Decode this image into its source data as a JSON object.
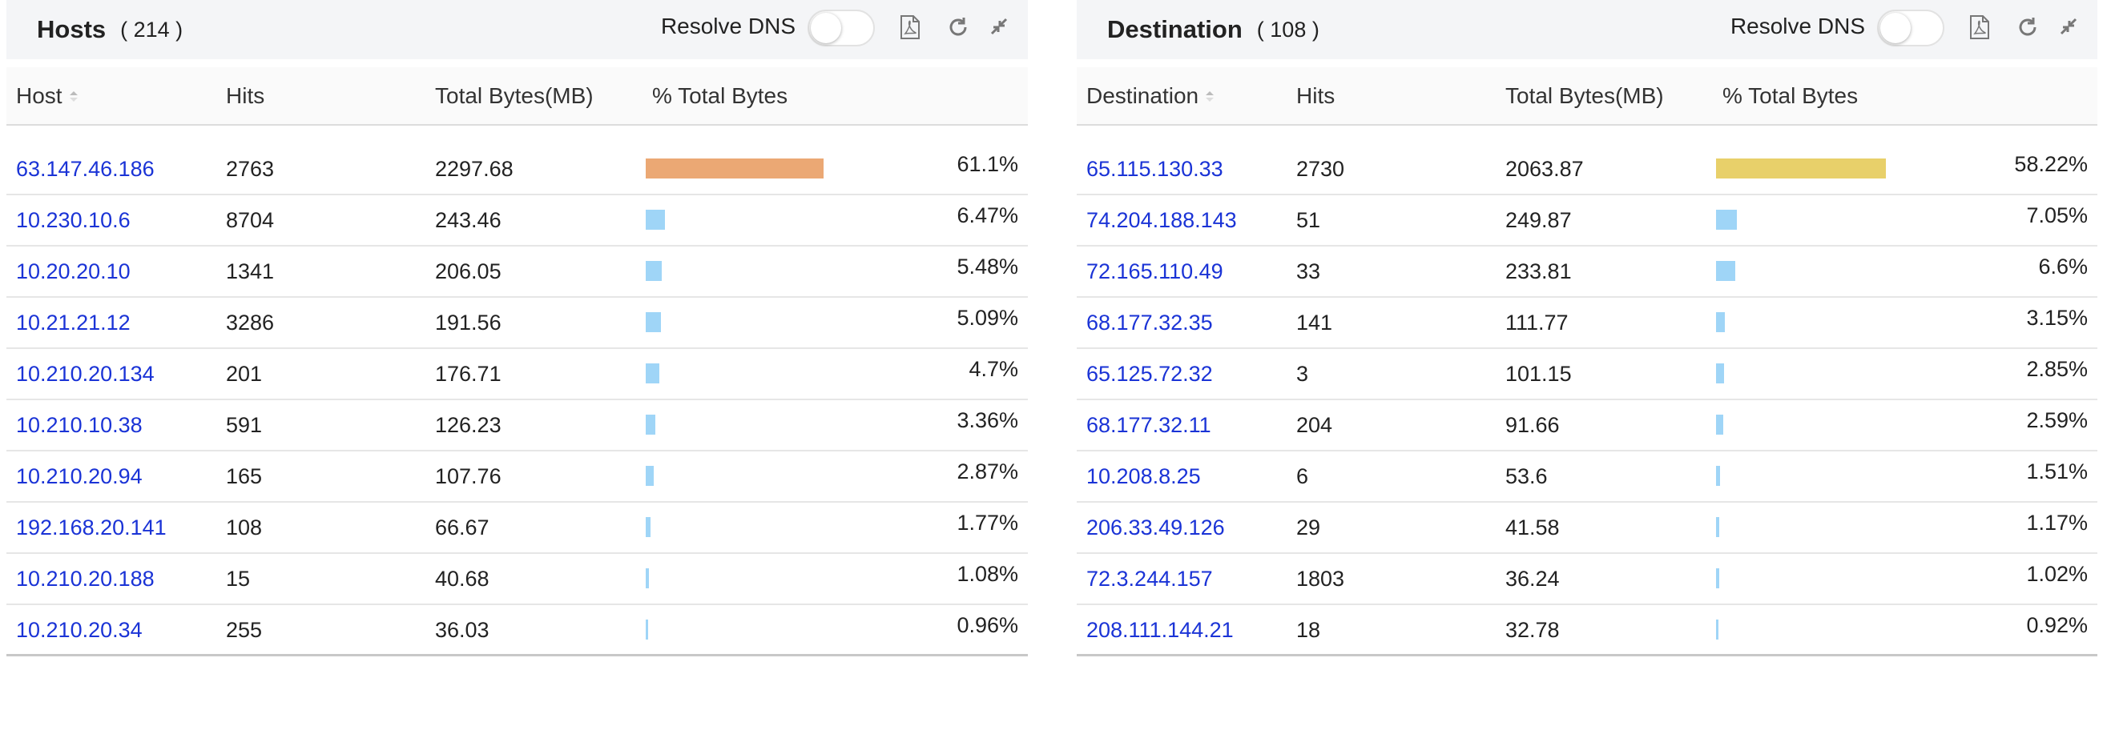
{
  "panels": [
    {
      "title": "Hosts",
      "count": "( 214 )",
      "resolve_label": "Resolve DNS",
      "columns": [
        "Host",
        "Hits",
        "Total Bytes(MB)",
        "% Total Bytes"
      ],
      "rows": [
        {
          "name": "63.147.46.186",
          "hits": 2763,
          "bytes": 2297.68,
          "pct": 61.1,
          "pct_label": "61.1%",
          "color": "#eba874"
        },
        {
          "name": "10.230.10.6",
          "hits": 8704,
          "bytes": 243.46,
          "pct": 6.47,
          "pct_label": "6.47%",
          "color": "#9fd5f7"
        },
        {
          "name": "10.20.20.10",
          "hits": 1341,
          "bytes": 206.05,
          "pct": 5.48,
          "pct_label": "5.48%",
          "color": "#9fd5f7"
        },
        {
          "name": "10.21.21.12",
          "hits": 3286,
          "bytes": 191.56,
          "pct": 5.09,
          "pct_label": "5.09%",
          "color": "#9fd5f7"
        },
        {
          "name": "10.210.20.134",
          "hits": 201,
          "bytes": 176.71,
          "pct": 4.7,
          "pct_label": "4.7%",
          "color": "#9fd5f7"
        },
        {
          "name": "10.210.10.38",
          "hits": 591,
          "bytes": 126.23,
          "pct": 3.36,
          "pct_label": "3.36%",
          "color": "#9fd5f7"
        },
        {
          "name": "10.210.20.94",
          "hits": 165,
          "bytes": 107.76,
          "pct": 2.87,
          "pct_label": "2.87%",
          "color": "#9fd5f7"
        },
        {
          "name": "192.168.20.141",
          "hits": 108,
          "bytes": 66.67,
          "pct": 1.77,
          "pct_label": "1.77%",
          "color": "#9fd5f7"
        },
        {
          "name": "10.210.20.188",
          "hits": 15,
          "bytes": 40.68,
          "pct": 1.08,
          "pct_label": "1.08%",
          "color": "#9fd5f7"
        },
        {
          "name": "10.210.20.34",
          "hits": 255,
          "bytes": 36.03,
          "pct": 0.96,
          "pct_label": "0.96%",
          "color": "#9fd5f7"
        }
      ]
    },
    {
      "title": "Destination",
      "count": "( 108 )",
      "resolve_label": "Resolve DNS",
      "columns": [
        "Destination",
        "Hits",
        "Total Bytes(MB)",
        "% Total Bytes"
      ],
      "rows": [
        {
          "name": "65.115.130.33",
          "hits": 2730,
          "bytes": 2063.87,
          "pct": 58.22,
          "pct_label": "58.22%",
          "color": "#e8d06a"
        },
        {
          "name": "74.204.188.143",
          "hits": 51,
          "bytes": 249.87,
          "pct": 7.05,
          "pct_label": "7.05%",
          "color": "#9fd5f7"
        },
        {
          "name": "72.165.110.49",
          "hits": 33,
          "bytes": 233.81,
          "pct": 6.6,
          "pct_label": "6.6%",
          "color": "#9fd5f7"
        },
        {
          "name": "68.177.32.35",
          "hits": 141,
          "bytes": 111.77,
          "pct": 3.15,
          "pct_label": "3.15%",
          "color": "#9fd5f7"
        },
        {
          "name": "65.125.72.32",
          "hits": 3,
          "bytes": 101.15,
          "pct": 2.85,
          "pct_label": "2.85%",
          "color": "#9fd5f7"
        },
        {
          "name": "68.177.32.11",
          "hits": 204,
          "bytes": 91.66,
          "pct": 2.59,
          "pct_label": "2.59%",
          "color": "#9fd5f7"
        },
        {
          "name": "10.208.8.25",
          "hits": 6,
          "bytes": 53.6,
          "pct": 1.51,
          "pct_label": "1.51%",
          "color": "#9fd5f7"
        },
        {
          "name": "206.33.49.126",
          "hits": 29,
          "bytes": 41.58,
          "pct": 1.17,
          "pct_label": "1.17%",
          "color": "#9fd5f7"
        },
        {
          "name": "72.3.244.157",
          "hits": 1803,
          "bytes": 36.24,
          "pct": 1.02,
          "pct_label": "1.02%",
          "color": "#9fd5f7"
        },
        {
          "name": "208.111.144.21",
          "hits": 18,
          "bytes": 32.78,
          "pct": 0.92,
          "pct_label": "0.92%",
          "color": "#9fd5f7"
        }
      ]
    }
  ]
}
